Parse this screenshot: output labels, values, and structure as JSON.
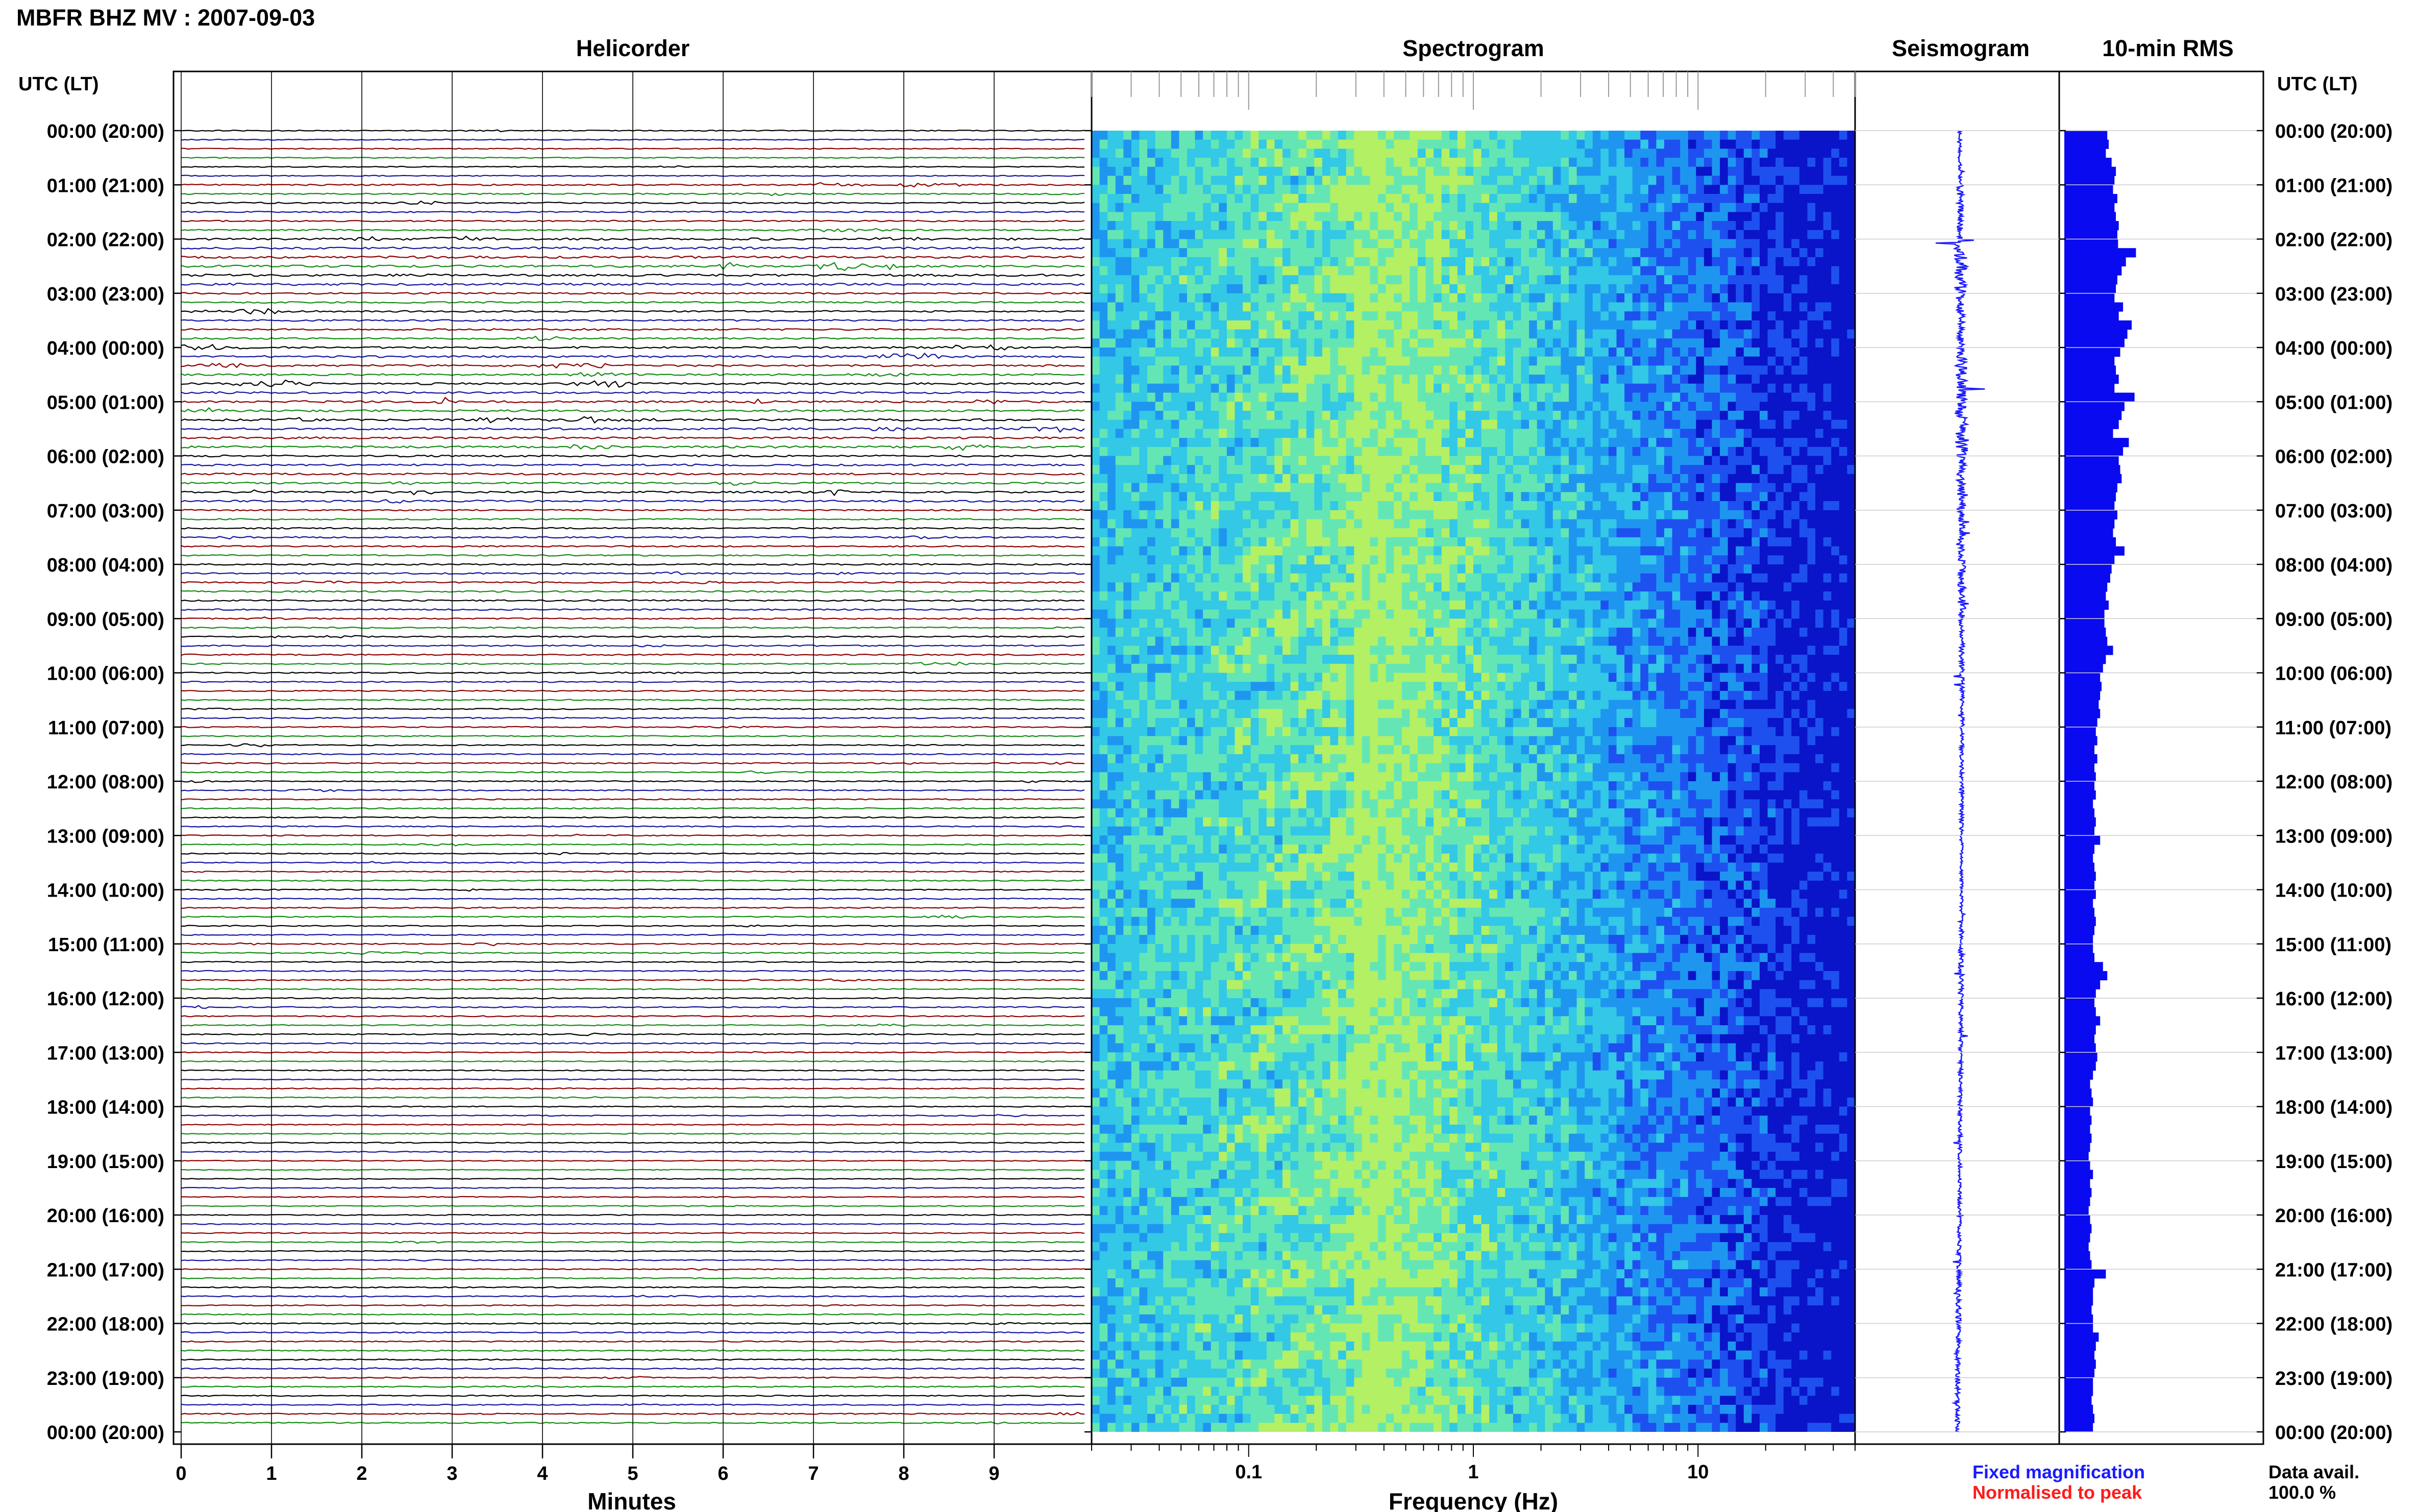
{
  "figure": {
    "title": "MBFR BHZ MV : 2007-09-03",
    "utc_header": "UTC (LT)",
    "panels": {
      "helicorder": "Helicorder",
      "spectrogram": "Spectrogram",
      "seismogram": "Seismogram",
      "rms": "10-min RMS"
    },
    "helicorder_xlabel": "Minutes",
    "spectrogram_xlabel": "Frequency (Hz)",
    "legend": {
      "fixed": "Fixed magnification",
      "normalised": "Normalised to peak",
      "fixed_color": "#1a1aff",
      "normalised_color": "#ff1a1a"
    },
    "data_avail_label": "Data avail.",
    "data_avail_value": "100.0 %"
  },
  "chart_data": [
    {
      "type": "line",
      "panel": "helicorder",
      "xlim": [
        0,
        10
      ],
      "x_ticks": [
        0,
        1,
        2,
        3,
        4,
        5,
        6,
        7,
        8,
        9
      ],
      "row_hours_utc": [
        0,
        24
      ],
      "row_interval_min": 10,
      "time_labels": [
        "00:00 (20:00)",
        "01:00 (21:00)",
        "02:00 (22:00)",
        "03:00 (23:00)",
        "04:00 (00:00)",
        "05:00 (01:00)",
        "06:00 (02:00)",
        "07:00 (03:00)",
        "08:00 (04:00)",
        "09:00 (05:00)",
        "10:00 (06:00)",
        "11:00 (07:00)",
        "12:00 (08:00)",
        "13:00 (09:00)",
        "14:00 (10:00)",
        "15:00 (11:00)",
        "16:00 (12:00)",
        "17:00 (13:00)",
        "18:00 (14:00)",
        "19:00 (15:00)",
        "20:00 (16:00)",
        "21:00 (17:00)",
        "22:00 (18:00)",
        "23:00 (19:00)",
        "00:00 (20:00)"
      ],
      "trace_colors": [
        "#000000",
        "#1414a0",
        "#8c0000",
        "#148c14"
      ],
      "activity_by_hour": [
        0.4,
        0.9,
        1.8,
        1.2,
        1.5,
        1.7,
        1.4,
        0.9,
        1.0,
        0.8,
        0.7,
        0.6,
        0.6,
        0.5,
        0.5,
        0.6,
        0.6,
        0.4,
        0.4,
        0.3,
        0.4,
        0.5,
        0.7,
        0.6
      ]
    },
    {
      "type": "heatmap",
      "panel": "spectrogram",
      "x_scale": "log",
      "xlim": [
        0.02,
        50
      ],
      "x_ticks": [
        0.1,
        1,
        10
      ],
      "x_tick_labels": [
        "0.1",
        "1",
        "10"
      ],
      "colormap": [
        "#0a14c8",
        "#1e50f0",
        "#1e96f0",
        "#32c8e6",
        "#64e6b4",
        "#b4f064"
      ],
      "peak_frequency_hz": 0.3
    },
    {
      "type": "line",
      "panel": "seismogram",
      "color": "#1a1aff",
      "amplitude_by_hour": [
        0.3,
        0.5,
        1.0,
        0.6,
        0.9,
        1.0,
        0.7,
        0.5,
        0.6,
        0.4,
        0.35,
        0.3,
        0.3,
        0.25,
        0.25,
        0.4,
        0.3,
        0.3,
        0.3,
        0.25,
        0.3,
        0.4,
        0.35,
        0.35
      ]
    },
    {
      "type": "bar",
      "panel": "rms",
      "color": "#0a0af0",
      "orientation": "horizontal",
      "values": [
        0.6,
        0.62,
        0.58,
        0.66,
        0.72,
        0.7,
        0.68,
        0.74,
        0.7,
        0.72,
        0.76,
        0.74,
        0.75,
        1.0,
        0.86,
        0.8,
        0.74,
        0.72,
        0.7,
        0.82,
        0.76,
        0.94,
        0.88,
        0.84,
        0.78,
        0.7,
        0.72,
        0.76,
        0.7,
        0.98,
        0.84,
        0.8,
        0.76,
        0.68,
        0.9,
        0.82,
        0.76,
        0.78,
        0.8,
        0.74,
        0.72,
        0.7,
        0.74,
        0.7,
        0.68,
        0.72,
        0.84,
        0.7,
        0.66,
        0.64,
        0.6,
        0.58,
        0.62,
        0.56,
        0.56,
        0.58,
        0.6,
        0.68,
        0.58,
        0.54,
        0.5,
        0.52,
        0.5,
        0.48,
        0.5,
        0.46,
        0.44,
        0.46,
        0.42,
        0.46,
        0.42,
        0.44,
        0.42,
        0.44,
        0.4,
        0.42,
        0.44,
        0.42,
        0.5,
        0.42,
        0.4,
        0.42,
        0.44,
        0.42,
        0.44,
        0.4,
        0.42,
        0.44,
        0.42,
        0.4,
        0.4,
        0.42,
        0.54,
        0.6,
        0.5,
        0.44,
        0.42,
        0.44,
        0.5,
        0.44,
        0.42,
        0.44,
        0.46,
        0.44,
        0.4,
        0.36,
        0.38,
        0.4,
        0.36,
        0.38,
        0.36,
        0.38,
        0.36,
        0.34,
        0.36,
        0.4,
        0.36,
        0.38,
        0.36,
        0.34,
        0.36,
        0.38,
        0.36,
        0.34,
        0.36,
        0.38,
        0.58,
        0.42,
        0.4,
        0.4,
        0.38,
        0.4,
        0.4,
        0.48,
        0.44,
        0.42,
        0.44,
        0.42,
        0.4,
        0.4,
        0.38,
        0.4,
        0.42,
        0.4
      ],
      "xlim": [
        0,
        1
      ]
    }
  ]
}
